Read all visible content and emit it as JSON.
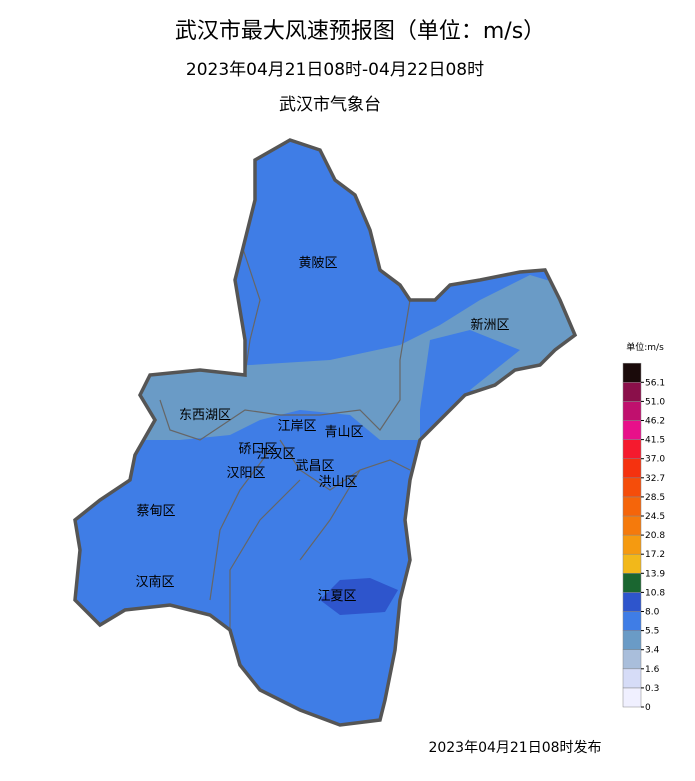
{
  "header": {
    "title": "武汉市最大风速预报图（单位：m/s）",
    "period": "2023年04月21日08时-04月22日08时",
    "issuer": "武汉市气象台"
  },
  "districts": [
    "黄陂区",
    "新洲区",
    "东西湖区",
    "江岸区",
    "青山区",
    "硚口区",
    "江汉区",
    "武昌区",
    "汉阳区",
    "洪山区",
    "蔡甸区",
    "汉南区",
    "江夏区"
  ],
  "legend": {
    "title": "单位:m/s",
    "ticks": [
      0,
      0.3,
      1.6,
      3.4,
      5.5,
      {
        "value": 8,
        "label": "8.0"
      },
      10.8,
      13.9,
      17.2,
      20.8,
      24.5,
      28.5,
      32.7,
      {
        "value": 37,
        "label": "37.0"
      },
      41.5,
      46.2,
      {
        "value": 51,
        "label": "51.0"
      },
      56.1
    ],
    "colors": [
      "#f0f0ff",
      "#d6dcf7",
      "#a9bedb",
      "#6a9bc6",
      "#3f7de6",
      "#2e55cc",
      "#1a6630",
      "#f2b81a",
      "#f59a10",
      "#f57a0c",
      "#f5650a",
      "#f54d0a",
      "#f5320f",
      "#f51a2e",
      "#e8108a",
      "#c0106e",
      "#8a0f4a",
      "#1a0a0a"
    ]
  },
  "footer": "2023年04月21日08时发布"
}
